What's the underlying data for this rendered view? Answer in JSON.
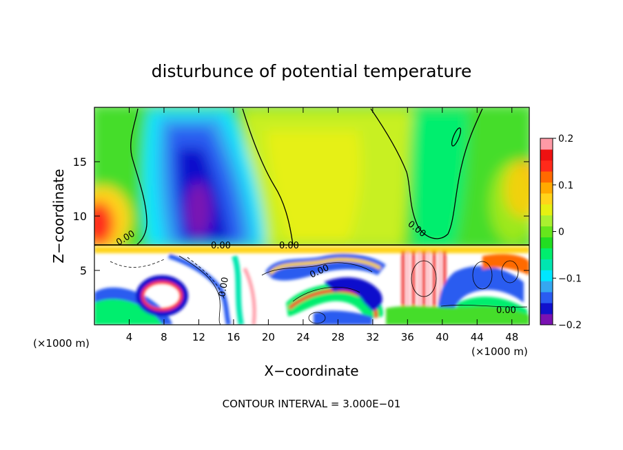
{
  "chart_data": {
    "type": "heatmap",
    "title": "disturbunce of potential temperature",
    "xlabel": "X−coordinate",
    "ylabel": "Z−coordinate",
    "x_unit_left": "(×1000 m)",
    "x_unit_right": "(×1000 m)",
    "footer": "CONTOUR INTERVAL = 3.000E−01",
    "xlim": [
      0,
      50
    ],
    "ylim": [
      0,
      20
    ],
    "x_ticks": [
      4,
      8,
      12,
      16,
      20,
      24,
      28,
      32,
      36,
      40,
      44,
      48
    ],
    "x_tick_labels": [
      "4",
      "8",
      "12",
      "16",
      "20",
      "24",
      "28",
      "32",
      "36",
      "40",
      "44",
      "48"
    ],
    "y_ticks": [
      5,
      10,
      15
    ],
    "y_tick_labels": [
      "5",
      "10",
      "15"
    ],
    "colorbar": {
      "range": [
        -0.2,
        0.2
      ],
      "ticks": [
        0.2,
        0.1,
        0,
        -0.1,
        -0.2
      ],
      "tick_labels": [
        "0.2",
        "0.1",
        "0",
        "−0.1",
        "−0.2"
      ],
      "colors": [
        "#7a12b2",
        "#1111cc",
        "#2a5cf0",
        "#35a7f0",
        "#00e6ff",
        "#00e6b0",
        "#00ee6e",
        "#22dd22",
        "#66e61c",
        "#aaf030",
        "#e6f012",
        "#ffd41a",
        "#ffaa00",
        "#ff6a00",
        "#ff2a1a",
        "#ee1111",
        "#ff9aa6"
      ]
    },
    "contour_labels": [
      "0.00",
      "0.00",
      "0.00",
      "0.00",
      "0.00",
      "0.00",
      "0.00"
    ],
    "upper_field_points": [
      {
        "x": 1.5,
        "z": 10.5,
        "v": 0.16
      },
      {
        "x": 3.5,
        "z": 12.5,
        "v": 0.08
      },
      {
        "x": 7,
        "z": 16,
        "v": 0.0
      },
      {
        "x": 11,
        "z": 16,
        "v": -0.12
      },
      {
        "x": 12,
        "z": 11,
        "v": -0.2
      },
      {
        "x": 14,
        "z": 14,
        "v": -0.12
      },
      {
        "x": 17,
        "z": 12,
        "v": -0.06
      },
      {
        "x": 21,
        "z": 16,
        "v": 0.04
      },
      {
        "x": 26,
        "z": 16,
        "v": 0.06
      },
      {
        "x": 27,
        "z": 10,
        "v": 0.06
      },
      {
        "x": 33,
        "z": 14,
        "v": 0.04
      },
      {
        "x": 40,
        "z": 12,
        "v": -0.01
      },
      {
        "x": 44,
        "z": 15,
        "v": 0.02
      },
      {
        "x": 49,
        "z": 11,
        "v": 0.12
      }
    ]
  }
}
